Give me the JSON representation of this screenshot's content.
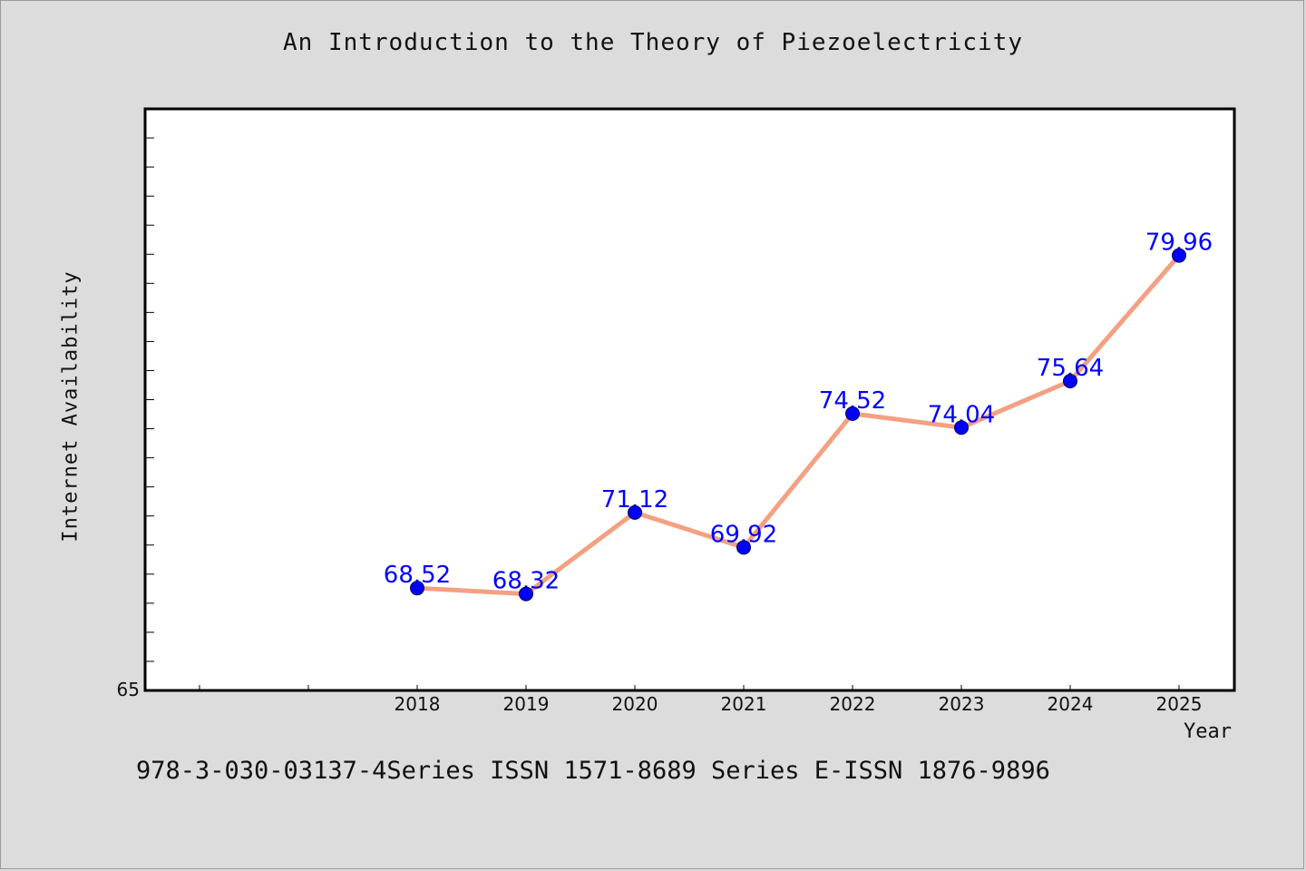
{
  "chart_data": {
    "type": "line",
    "title": "An Introduction to the Theory of Piezoelectricity",
    "xlabel": "Year",
    "ylabel": "Internet Availability",
    "categories": [
      "2018",
      "2019",
      "2020",
      "2021",
      "2022",
      "2023",
      "2024",
      "2025"
    ],
    "values": [
      68.52,
      68.32,
      71.12,
      69.92,
      74.52,
      74.04,
      75.64,
      79.96
    ],
    "data_labels": [
      "68.52",
      "68.32",
      "71.12",
      "69.92",
      "74.52",
      "74.04",
      "75.64",
      "79.96"
    ],
    "ylim": [
      65,
      85
    ],
    "y_tick_labels": [
      "65"
    ],
    "grid": false,
    "legend": "none",
    "colors": {
      "line": "#f4a082",
      "marker": "#0000ff",
      "label": "#0000ff",
      "background": "#dcdcdc",
      "plot_area": "#ffffff"
    }
  },
  "footer": "978-3-030-03137-4Series ISSN 1571-8689 Series E-ISSN 1876-9896"
}
